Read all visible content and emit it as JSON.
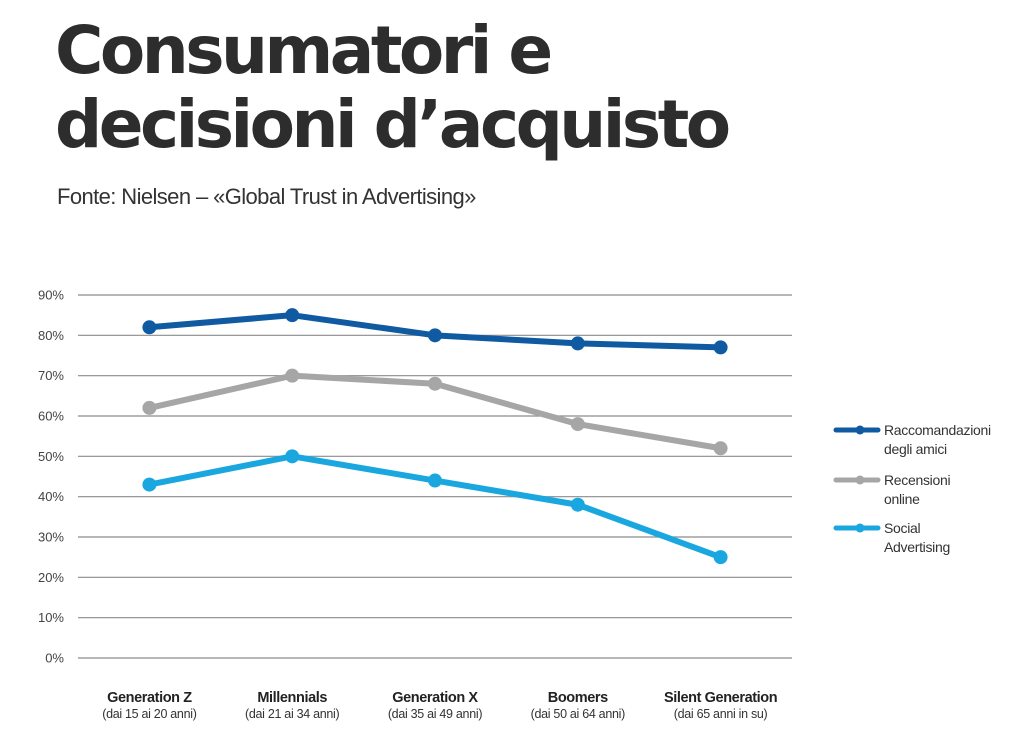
{
  "title_line1": "Consumatori e",
  "title_line2": "decisioni d’acquisto",
  "subtitle": "Fonte: Nielsen – «Global Trust in Advertising»",
  "chart_data": {
    "type": "line",
    "categories": [
      "Generation Z",
      "Millennials",
      "Generation X",
      "Boomers",
      "Silent Generation"
    ],
    "category_sublabels": [
      "(dai 15 ai 20 anni)",
      "(dai 21 ai 34 anni)",
      "(dai 35 ai 49 anni)",
      "(dai 50 ai 64 anni)",
      "(dai 65 anni in su)"
    ],
    "y_ticks": [
      "0%",
      "10%",
      "20%",
      "30%",
      "40%",
      "50%",
      "60%",
      "70%",
      "80%",
      "90%"
    ],
    "ylim": [
      0,
      90
    ],
    "grid": true,
    "legend_position": "right",
    "series": [
      {
        "name": "Raccomandazioni degli amici",
        "legend_lines": [
          "Raccomandazioni",
          "degli amici"
        ],
        "color": "#0f5aa0",
        "values": [
          82,
          85,
          80,
          78,
          77
        ]
      },
      {
        "name": "Recensioni online",
        "legend_lines": [
          "Recensioni",
          "online"
        ],
        "color": "#a6a6a6",
        "values": [
          62,
          70,
          68,
          58,
          52
        ]
      },
      {
        "name": "Social Advertising",
        "legend_lines": [
          "Social",
          "Advertising"
        ],
        "color": "#1aa7e0",
        "values": [
          43,
          50,
          44,
          38,
          25
        ]
      }
    ]
  }
}
